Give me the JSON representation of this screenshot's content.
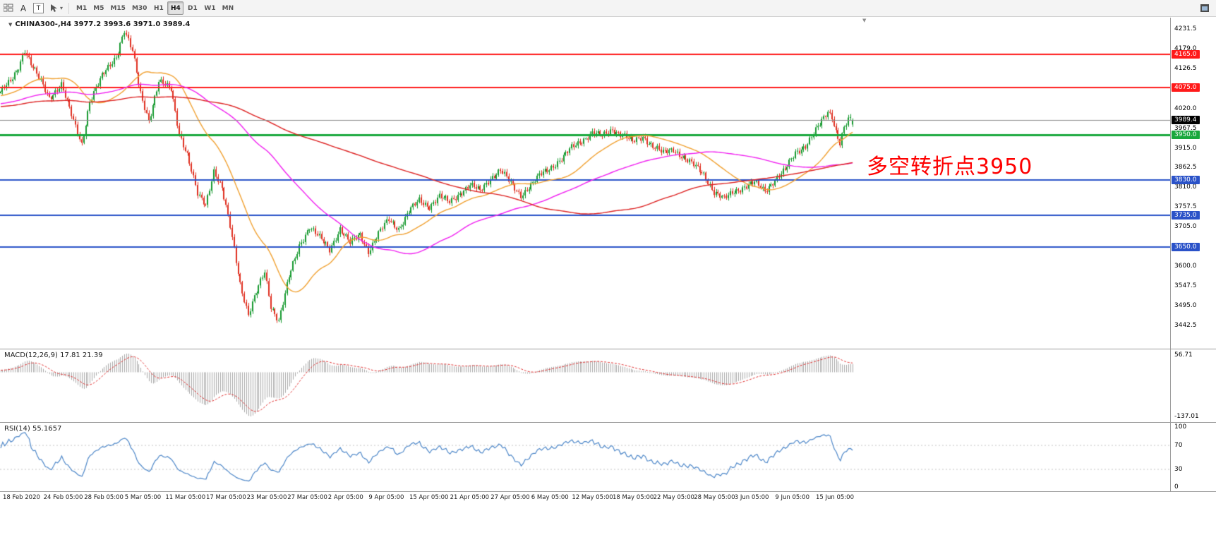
{
  "toolbar": {
    "icons": [
      {
        "name": "tile-windows-icon"
      },
      {
        "name": "text-label-icon",
        "glyph": "A"
      },
      {
        "name": "text-box-icon",
        "glyph": "T"
      },
      {
        "name": "cursor-tool-icon"
      },
      {
        "name": "dropdown-chevron-icon",
        "glyph": "▾"
      },
      {
        "name": "window-icon"
      }
    ],
    "timeframes": [
      "M1",
      "M5",
      "M15",
      "M30",
      "H1",
      "H4",
      "D1",
      "W1",
      "MN"
    ],
    "active_timeframe": "H4"
  },
  "chart": {
    "collapse_glyph": "▼",
    "shift_marker_glyph": "▼",
    "title": "CHINA300-,H4  3977.2 3993.6 3971.0 3989.4",
    "annotation": "多空转折点3950",
    "annotation_color": "#fe0000",
    "current_price": "3989.4",
    "current_price_badge_color": "#000000",
    "levels": [
      {
        "value": 4165.0,
        "label": "4165.0",
        "color": "#ff1a1a",
        "thickness": 2
      },
      {
        "value": 4075.0,
        "label": "4075.0",
        "color": "#ff1a1a",
        "thickness": 2
      },
      {
        "value": 3950.0,
        "label": "3950.0",
        "color": "#18a83c",
        "thickness": 3
      },
      {
        "value": 3830.0,
        "label": "3830.0",
        "color": "#2a52c8",
        "thickness": 2
      },
      {
        "value": 3735.0,
        "label": "3735.0",
        "color": "#2a52c8",
        "thickness": 2
      },
      {
        "value": 3650.0,
        "label": "3650.0",
        "color": "#2a52c8",
        "thickness": 2
      }
    ],
    "price_ticks": [
      "4231.5",
      "4179.0",
      "4126.5",
      "4020.0",
      "3967.5",
      "3915.0",
      "3862.5",
      "3810.0",
      "3757.5",
      "3705.0",
      "3600.0",
      "3547.5",
      "3495.0",
      "3442.5"
    ]
  },
  "macd_panel": {
    "label": "MACD(12,26,9) 17.81 21.39",
    "upper_tick": "56.71",
    "lower_tick": "-137.01"
  },
  "rsi_panel": {
    "label": "RSI(14) 55.1657",
    "ticks": [
      "100",
      "70",
      "30",
      "0"
    ]
  },
  "time_axis": [
    "18 Feb 2020",
    "24 Feb 05:00",
    "28 Feb 05:00",
    "5 Mar 05:00",
    "11 Mar 05:00",
    "17 Mar 05:00",
    "23 Mar 05:00",
    "27 Mar 05:00",
    "2 Apr 05:00",
    "9 Apr 05:00",
    "15 Apr 05:00",
    "21 Apr 05:00",
    "27 Apr 05:00",
    "6 May 05:00",
    "12 May 05:00",
    "18 May 05:00",
    "22 May 05:00",
    "28 May 05:00",
    "3 Jun 05:00",
    "9 Jun 05:00",
    "15 Jun 05:00"
  ],
  "chart_data": {
    "type": "candlestick",
    "symbol": "CHINA300-",
    "timeframe": "H4",
    "title": "CHINA300-,H4",
    "last_bar": {
      "open": 3977.2,
      "high": 3993.6,
      "low": 3971.0,
      "close": 3989.4
    },
    "bars": 420,
    "y_range": [
      3380,
      4262
    ],
    "price_path": [
      [
        0,
        4065
      ],
      [
        5,
        4090
      ],
      [
        9,
        4130
      ],
      [
        12,
        4178
      ],
      [
        15,
        4140
      ],
      [
        18,
        4110
      ],
      [
        24,
        4048
      ],
      [
        30,
        4085
      ],
      [
        36,
        3985
      ],
      [
        40,
        3925
      ],
      [
        44,
        4040
      ],
      [
        50,
        4105
      ],
      [
        57,
        4160
      ],
      [
        61,
        4228
      ],
      [
        65,
        4170
      ],
      [
        69,
        4060
      ],
      [
        73,
        3990
      ],
      [
        78,
        4090
      ],
      [
        84,
        4072
      ],
      [
        88,
        3955
      ],
      [
        92,
        3895
      ],
      [
        97,
        3790
      ],
      [
        101,
        3765
      ],
      [
        105,
        3855
      ],
      [
        109,
        3805
      ],
      [
        113,
        3705
      ],
      [
        118,
        3555
      ],
      [
        122,
        3470
      ],
      [
        126,
        3530
      ],
      [
        130,
        3585
      ],
      [
        133,
        3495
      ],
      [
        137,
        3455
      ],
      [
        142,
        3570
      ],
      [
        147,
        3655
      ],
      [
        152,
        3705
      ],
      [
        157,
        3675
      ],
      [
        162,
        3645
      ],
      [
        167,
        3700
      ],
      [
        172,
        3660
      ],
      [
        177,
        3685
      ],
      [
        181,
        3640
      ],
      [
        186,
        3685
      ],
      [
        191,
        3725
      ],
      [
        196,
        3700
      ],
      [
        201,
        3745
      ],
      [
        206,
        3775
      ],
      [
        211,
        3760
      ],
      [
        216,
        3785
      ],
      [
        221,
        3770
      ],
      [
        226,
        3795
      ],
      [
        231,
        3815
      ],
      [
        236,
        3800
      ],
      [
        241,
        3835
      ],
      [
        246,
        3855
      ],
      [
        251,
        3820
      ],
      [
        256,
        3790
      ],
      [
        261,
        3815
      ],
      [
        266,
        3845
      ],
      [
        271,
        3865
      ],
      [
        276,
        3885
      ],
      [
        281,
        3915
      ],
      [
        286,
        3935
      ],
      [
        291,
        3955
      ],
      [
        296,
        3945
      ],
      [
        301,
        3965
      ],
      [
        306,
        3950
      ],
      [
        311,
        3930
      ],
      [
        316,
        3945
      ],
      [
        321,
        3920
      ],
      [
        326,
        3900
      ],
      [
        331,
        3912
      ],
      [
        336,
        3890
      ],
      [
        341,
        3868
      ],
      [
        346,
        3845
      ],
      [
        351,
        3798
      ],
      [
        356,
        3778
      ],
      [
        361,
        3800
      ],
      [
        366,
        3812
      ],
      [
        371,
        3822
      ],
      [
        376,
        3800
      ],
      [
        381,
        3832
      ],
      [
        386,
        3855
      ],
      [
        391,
        3902
      ],
      [
        396,
        3922
      ],
      [
        400,
        3952
      ],
      [
        404,
        3985
      ],
      [
        407,
        4012
      ],
      [
        409,
        4000
      ],
      [
        411,
        3960
      ],
      [
        413,
        3928
      ],
      [
        415,
        3968
      ],
      [
        417,
        3988
      ],
      [
        419,
        3989.4
      ]
    ],
    "horizontal_levels": [
      4165.0,
      4075.0,
      3950.0,
      3830.0,
      3735.0,
      3650.0
    ],
    "candle_colors": {
      "up": "#169a2f",
      "down": "#df2e1f"
    },
    "moving_averages": [
      {
        "period": 30,
        "color": "#f0a030"
      },
      {
        "period": 90,
        "color": "#f020f0"
      },
      {
        "period": 200,
        "color": "#dd2222"
      }
    ],
    "macd": {
      "fast": 12,
      "slow": 26,
      "signal": 9,
      "current_macd": 17.81,
      "current_signal": 21.39,
      "axis_max": 56.71,
      "axis_min": -137.01,
      "histogram_color": "#a9a9a9",
      "signal_color": "#e03030"
    },
    "rsi": {
      "period": 14,
      "current": 55.1657,
      "axis": [
        0,
        100
      ],
      "guides": [
        70,
        30
      ],
      "line_color": "#4c86c8"
    }
  }
}
